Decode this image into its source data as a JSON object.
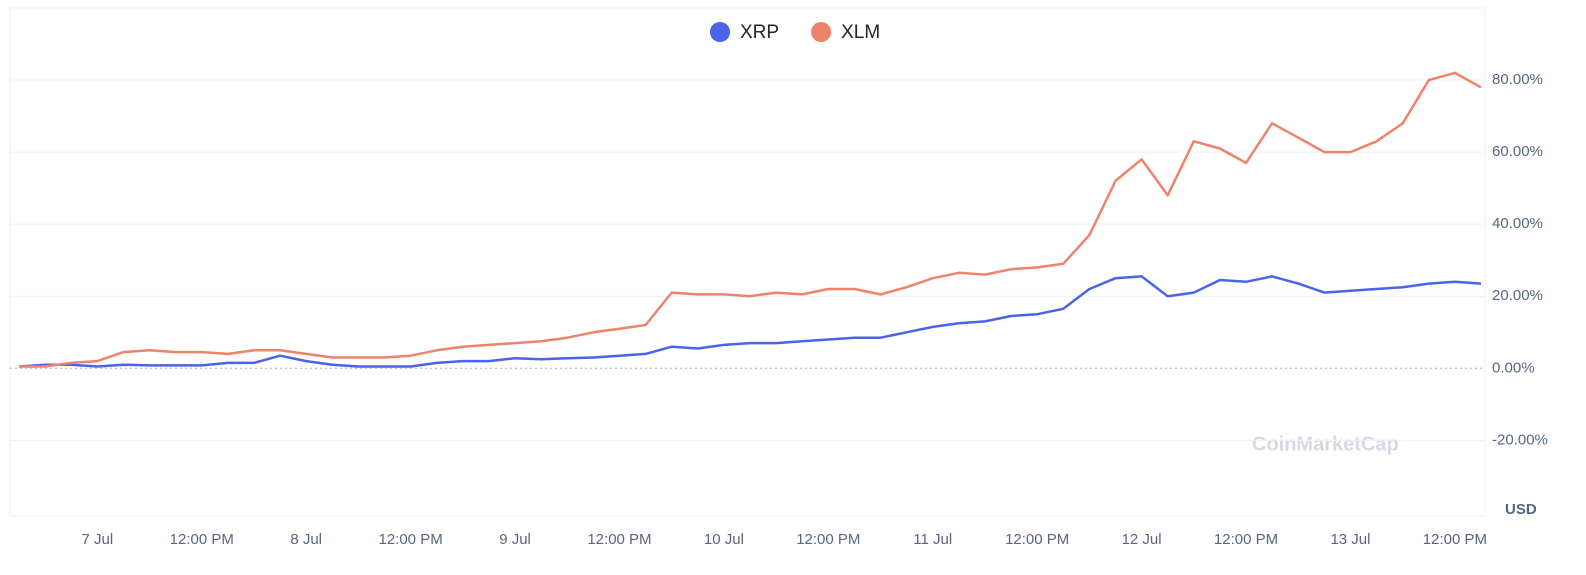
{
  "chart_data": {
    "type": "line",
    "categories": [
      null,
      null,
      null,
      "7 Jul",
      null,
      null,
      null,
      "12:00 PM",
      null,
      null,
      null,
      "8 Jul",
      null,
      null,
      null,
      "12:00 PM",
      null,
      null,
      null,
      "9 Jul",
      null,
      null,
      null,
      "12:00 PM",
      null,
      null,
      null,
      "10 Jul",
      null,
      null,
      null,
      "12:00 PM",
      null,
      null,
      null,
      "11 Jul",
      null,
      null,
      null,
      "12:00 PM",
      null,
      null,
      null,
      "12 Jul",
      null,
      null,
      null,
      "12:00 PM",
      null,
      null,
      null,
      "13 Jul",
      null,
      null,
      null,
      "12:00 PM",
      null
    ],
    "series": [
      {
        "name": "XRP",
        "color": "#4a63eb",
        "values": [
          0.5,
          1,
          1,
          0.5,
          1,
          0.8,
          0.8,
          0.8,
          1.5,
          1.5,
          3.5,
          2,
          1,
          0.5,
          0.5,
          0.5,
          1.5,
          2,
          2,
          2.8,
          2.5,
          2.8,
          3,
          3.5,
          4,
          6,
          5.5,
          6.5,
          7,
          7,
          7.5,
          8,
          8.5,
          8.5,
          10,
          11.5,
          12.5,
          13,
          14.5,
          15,
          16.5,
          22,
          25,
          25.5,
          20,
          21,
          24.5,
          24,
          25.5,
          23.5,
          21,
          21.5,
          22,
          22.5,
          23.5,
          24,
          23.5
        ]
      },
      {
        "name": "XLM",
        "color": "#ee8369",
        "values": [
          0.5,
          0.5,
          1.5,
          2,
          4.5,
          5,
          4.5,
          4.5,
          4,
          5,
          5,
          4,
          3,
          3,
          3,
          3.5,
          5,
          6,
          6.5,
          7,
          7.5,
          8.5,
          10,
          11,
          12,
          21,
          20.5,
          20.5,
          20,
          21,
          20.5,
          22,
          22,
          20.5,
          22.5,
          25,
          26.5,
          26,
          27.5,
          28,
          29,
          37,
          52,
          58,
          48,
          63,
          61,
          57,
          68,
          64,
          60,
          60,
          63,
          68,
          80,
          82,
          78
        ]
      }
    ],
    "ylim": [
      -41,
      100
    ],
    "yticks": [
      {
        "value": -20,
        "label": "-20.00%"
      },
      {
        "value": 0,
        "label": "0.00%"
      },
      {
        "value": 20,
        "label": "20.00%"
      },
      {
        "value": 40,
        "label": "40.00%"
      },
      {
        "value": 60,
        "label": "60.00%"
      },
      {
        "value": 80,
        "label": "80.00%"
      }
    ],
    "grid": true,
    "currency": "USD",
    "watermark": "CoinMarketCap"
  }
}
